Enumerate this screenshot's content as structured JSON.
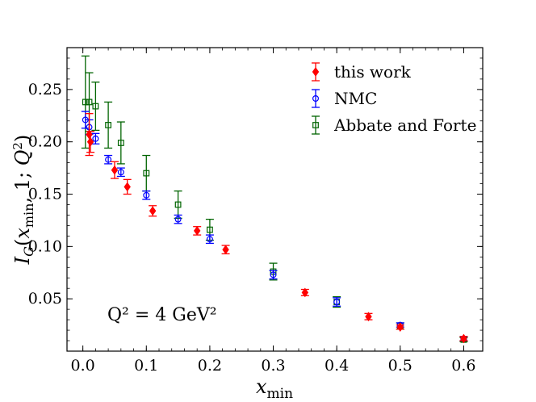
{
  "chart_data": {
    "type": "scatter",
    "xlabel": "x_min",
    "ylabel": "I_G(x_min, 1; Q^2)",
    "xlim": [
      -0.025,
      0.63
    ],
    "ylim": [
      0.0,
      0.29
    ],
    "xticks": [
      "0.0",
      "0.1",
      "0.2",
      "0.3",
      "0.4",
      "0.5",
      "0.6"
    ],
    "yticks": [
      "0.05",
      "0.10",
      "0.15",
      "0.20",
      "0.25"
    ],
    "legend_position": "top-right",
    "annotation": "Q² = 4 GeV²",
    "series": [
      {
        "name": "this work",
        "color": "#ff0000",
        "marker": "diamond",
        "points": [
          {
            "x": 0.01,
            "y": 0.207,
            "err": 0.02
          },
          {
            "x": 0.012,
            "y": 0.2,
            "err": 0.01
          },
          {
            "x": 0.05,
            "y": 0.173,
            "err": 0.008
          },
          {
            "x": 0.07,
            "y": 0.157,
            "err": 0.007
          },
          {
            "x": 0.11,
            "y": 0.134,
            "err": 0.005
          },
          {
            "x": 0.18,
            "y": 0.115,
            "err": 0.004
          },
          {
            "x": 0.225,
            "y": 0.097,
            "err": 0.004
          },
          {
            "x": 0.35,
            "y": 0.056,
            "err": 0.003
          },
          {
            "x": 0.45,
            "y": 0.033,
            "err": 0.003
          },
          {
            "x": 0.5,
            "y": 0.023,
            "err": 0.002
          },
          {
            "x": 0.6,
            "y": 0.012,
            "err": 0.002
          }
        ]
      },
      {
        "name": "NMC",
        "color": "#0000ff",
        "marker": "circle",
        "points": [
          {
            "x": 0.004,
            "y": 0.221,
            "err": 0.008
          },
          {
            "x": 0.01,
            "y": 0.214,
            "err": 0.007
          },
          {
            "x": 0.02,
            "y": 0.203,
            "err": 0.005
          },
          {
            "x": 0.04,
            "y": 0.183,
            "err": 0.004
          },
          {
            "x": 0.06,
            "y": 0.171,
            "err": 0.004
          },
          {
            "x": 0.1,
            "y": 0.149,
            "err": 0.004
          },
          {
            "x": 0.15,
            "y": 0.126,
            "err": 0.004
          },
          {
            "x": 0.2,
            "y": 0.107,
            "err": 0.004
          },
          {
            "x": 0.3,
            "y": 0.073,
            "err": 0.004
          },
          {
            "x": 0.4,
            "y": 0.047,
            "err": 0.004
          },
          {
            "x": 0.5,
            "y": 0.025,
            "err": 0.002
          },
          {
            "x": 0.6,
            "y": 0.012,
            "err": 0.002
          }
        ]
      },
      {
        "name": "Abbate and Forte",
        "color": "#006400",
        "marker": "square",
        "points": [
          {
            "x": 0.004,
            "y": 0.238,
            "err": 0.044
          },
          {
            "x": 0.01,
            "y": 0.238,
            "err": 0.028
          },
          {
            "x": 0.02,
            "y": 0.234,
            "err": 0.023
          },
          {
            "x": 0.04,
            "y": 0.216,
            "err": 0.022
          },
          {
            "x": 0.06,
            "y": 0.199,
            "err": 0.02
          },
          {
            "x": 0.1,
            "y": 0.17,
            "err": 0.017
          },
          {
            "x": 0.15,
            "y": 0.14,
            "err": 0.013
          },
          {
            "x": 0.2,
            "y": 0.116,
            "err": 0.01
          },
          {
            "x": 0.3,
            "y": 0.076,
            "err": 0.008
          },
          {
            "x": 0.4,
            "y": 0.047,
            "err": 0.005
          },
          {
            "x": 0.5,
            "y": 0.024,
            "err": 0.003
          },
          {
            "x": 0.6,
            "y": 0.011,
            "err": 0.002
          }
        ]
      }
    ]
  }
}
